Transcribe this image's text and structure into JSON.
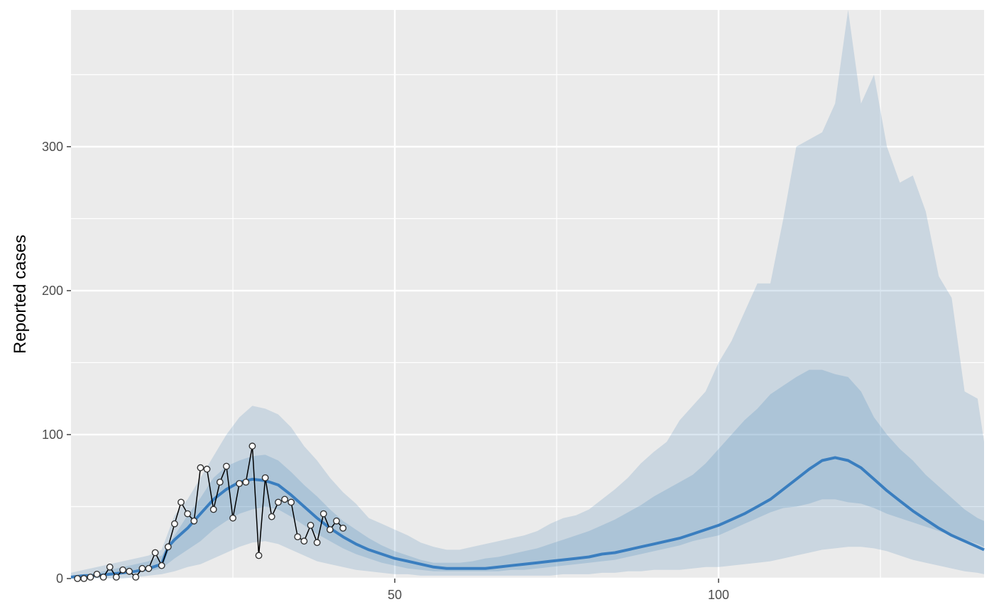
{
  "chart_data": {
    "type": "line",
    "title": "",
    "xlabel": "",
    "ylabel": "Reported cases",
    "xlim": [
      0,
      141
    ],
    "ylim": [
      0,
      395
    ],
    "x_ticks": [
      50,
      100
    ],
    "x_tick_labels": [
      "50",
      "100"
    ],
    "y_ticks": [
      0,
      100,
      200,
      300
    ],
    "y_tick_labels": [
      "0",
      "100",
      "200",
      "300"
    ],
    "grid": true,
    "legend": "none",
    "colors": {
      "panel": "#ebebeb",
      "grid": "#ffffff",
      "band": "#4682b4",
      "median": "#3a7ebf",
      "observed_line": "#000000",
      "observed_point_fill": "#ffffff",
      "observed_point_stroke": "#333333"
    },
    "ci_outer": {
      "x": [
        0,
        2,
        4,
        6,
        8,
        10,
        12,
        14,
        16,
        18,
        20,
        22,
        24,
        26,
        28,
        30,
        32,
        34,
        36,
        38,
        40,
        42,
        44,
        46,
        48,
        50,
        52,
        54,
        56,
        58,
        60,
        62,
        64,
        66,
        68,
        70,
        72,
        74,
        76,
        78,
        80,
        82,
        84,
        86,
        88,
        90,
        92,
        94,
        96,
        98,
        100,
        102,
        104,
        106,
        108,
        110,
        112,
        114,
        116,
        118,
        120,
        122,
        124,
        126,
        128,
        130,
        132,
        134,
        136,
        138,
        140,
        141
      ],
      "lower": [
        0,
        0,
        0,
        0,
        0,
        1,
        2,
        3,
        5,
        8,
        10,
        14,
        18,
        22,
        25,
        26,
        24,
        20,
        16,
        12,
        10,
        8,
        6,
        5,
        4,
        3,
        3,
        2,
        2,
        2,
        2,
        2,
        2,
        2,
        2,
        2,
        2,
        2,
        3,
        3,
        3,
        4,
        4,
        5,
        5,
        6,
        6,
        6,
        7,
        8,
        8,
        9,
        10,
        11,
        12,
        14,
        16,
        18,
        20,
        21,
        22,
        22,
        21,
        19,
        16,
        13,
        11,
        9,
        7,
        5,
        4,
        3
      ],
      "upper": [
        4,
        6,
        8,
        10,
        12,
        14,
        16,
        20,
        44,
        55,
        70,
        85,
        100,
        112,
        120,
        118,
        114,
        105,
        92,
        82,
        70,
        60,
        52,
        42,
        38,
        34,
        30,
        25,
        22,
        20,
        20,
        22,
        24,
        26,
        28,
        30,
        33,
        38,
        42,
        44,
        48,
        55,
        62,
        70,
        80,
        88,
        95,
        110,
        120,
        130,
        150,
        165,
        185,
        205,
        205,
        250,
        300,
        305,
        310,
        330,
        395,
        330,
        350,
        300,
        275,
        280,
        255,
        210,
        195,
        130,
        125,
        95
      ]
    },
    "ci_inner": {
      "x": [
        0,
        2,
        4,
        6,
        8,
        10,
        12,
        14,
        16,
        18,
        20,
        22,
        24,
        26,
        28,
        30,
        32,
        34,
        36,
        38,
        40,
        42,
        44,
        46,
        48,
        50,
        52,
        54,
        56,
        58,
        60,
        62,
        64,
        66,
        68,
        70,
        72,
        74,
        76,
        78,
        80,
        82,
        84,
        86,
        88,
        90,
        92,
        94,
        96,
        98,
        100,
        102,
        104,
        106,
        108,
        110,
        112,
        114,
        116,
        118,
        120,
        122,
        124,
        126,
        128,
        130,
        132,
        134,
        136,
        138,
        140,
        141
      ],
      "lower": [
        0,
        1,
        1,
        2,
        3,
        4,
        5,
        7,
        14,
        20,
        26,
        34,
        40,
        45,
        48,
        50,
        48,
        43,
        37,
        31,
        26,
        21,
        17,
        14,
        11,
        9,
        7,
        6,
        5,
        5,
        5,
        5,
        5,
        5,
        6,
        6,
        7,
        8,
        9,
        10,
        11,
        12,
        13,
        15,
        17,
        19,
        21,
        23,
        26,
        28,
        30,
        34,
        38,
        42,
        46,
        49,
        50,
        52,
        55,
        55,
        53,
        52,
        49,
        45,
        42,
        39,
        36,
        33,
        30,
        27,
        24,
        22
      ],
      "upper": [
        2,
        3,
        4,
        6,
        8,
        10,
        12,
        16,
        30,
        44,
        56,
        70,
        78,
        82,
        85,
        86,
        82,
        74,
        65,
        57,
        48,
        40,
        34,
        28,
        23,
        19,
        16,
        13,
        11,
        11,
        11,
        12,
        14,
        15,
        17,
        19,
        21,
        24,
        27,
        30,
        33,
        37,
        41,
        46,
        51,
        57,
        62,
        67,
        72,
        80,
        90,
        100,
        110,
        118,
        128,
        134,
        140,
        145,
        145,
        142,
        140,
        130,
        112,
        100,
        90,
        82,
        72,
        64,
        56,
        48,
        42,
        40
      ]
    },
    "median": {
      "x": [
        0,
        2,
        4,
        6,
        8,
        10,
        12,
        14,
        15,
        16,
        18,
        20,
        22,
        24,
        26,
        28,
        30,
        32,
        34,
        36,
        38,
        40,
        42,
        44,
        46,
        48,
        50,
        52,
        54,
        56,
        58,
        60,
        62,
        64,
        66,
        68,
        70,
        72,
        74,
        76,
        78,
        80,
        82,
        84,
        86,
        88,
        90,
        92,
        94,
        96,
        98,
        100,
        102,
        104,
        106,
        108,
        110,
        112,
        114,
        116,
        118,
        120,
        122,
        124,
        126,
        128,
        130,
        132,
        134,
        136,
        138,
        140,
        141
      ],
      "y": [
        1,
        2,
        2,
        3,
        4,
        5,
        7,
        10,
        22,
        27,
        35,
        45,
        55,
        62,
        67,
        69,
        68,
        65,
        58,
        50,
        42,
        35,
        29,
        24,
        20,
        17,
        14,
        12,
        10,
        8,
        7,
        7,
        7,
        7,
        8,
        9,
        10,
        11,
        12,
        13,
        14,
        15,
        17,
        18,
        20,
        22,
        24,
        26,
        28,
        31,
        34,
        37,
        41,
        45,
        50,
        55,
        62,
        69,
        76,
        82,
        84,
        82,
        77,
        69,
        61,
        54,
        47,
        41,
        35,
        30,
        26,
        22,
        20
      ]
    },
    "observed": {
      "x": [
        1,
        2,
        3,
        4,
        5,
        6,
        7,
        8,
        9,
        10,
        11,
        12,
        13,
        14,
        15,
        16,
        17,
        18,
        19,
        20,
        21,
        22,
        23,
        24,
        25,
        26,
        27,
        28,
        29,
        30,
        31,
        32,
        33,
        34,
        35,
        36,
        37,
        38,
        39,
        40,
        41,
        42
      ],
      "y": [
        0,
        0,
        1,
        3,
        1,
        8,
        1,
        6,
        5,
        1,
        7,
        7,
        18,
        9,
        22,
        38,
        53,
        45,
        40,
        77,
        76,
        48,
        67,
        78,
        42,
        66,
        67,
        92,
        16,
        70,
        43,
        53,
        55,
        53,
        29,
        26,
        37,
        25,
        45,
        34,
        40,
        35
      ]
    }
  }
}
